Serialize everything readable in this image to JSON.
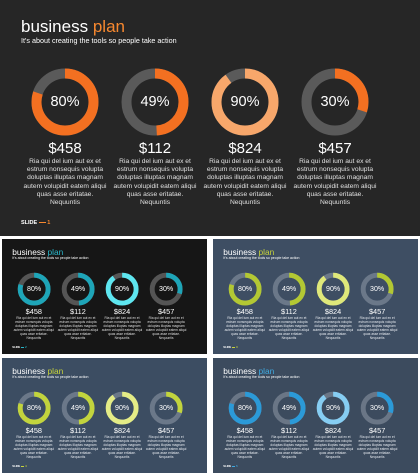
{
  "slides": [
    {
      "title_main": "business",
      "title_accent": "plan",
      "subtitle": "It's about creating the tools so people take action",
      "footer_label": "SLIDE",
      "footer_number": "1",
      "colors": {
        "background": "#262626",
        "title": "#ffffff",
        "accent": "#f7882f",
        "ring_track": "#5a5a5a",
        "text": "#e0e0e0"
      },
      "items": [
        {
          "percent_label": "80%",
          "percent": 80,
          "ring_color": "#f37021",
          "value": "$458",
          "description": "Ria qui del ium aut ex et estrum nonsequis volupta doluptas illuptas magnam autem volupidit eatem aliqui quas asse eritatae. Nequuntis"
        },
        {
          "percent_label": "49%",
          "percent": 49,
          "ring_color": "#f37021",
          "value": "$112",
          "description": "Ria qui del ium aut ex et estrum nonsequis volupta doluptas illuptas magnam autem volupidit eatem aliqui quas asse eritatae. Nequuntis"
        },
        {
          "percent_label": "90%",
          "percent": 90,
          "ring_color": "#f7a76b",
          "value": "$824",
          "description": "Ria qui del ium aut ex et estrum nonsequis volupta doluptas illuptas magnam autem volupidit eatem aliqui quas asse eritatae. Nequuntis"
        },
        {
          "percent_label": "30%",
          "percent": 30,
          "ring_color": "#f37021",
          "value": "$457",
          "description": "Ria qui del ium aut ex et estrum nonsequis volupta doluptas illuptas magnam autem volupidit eatem aliqui quas asse eritatae. Nequuntis"
        }
      ]
    },
    {
      "title_main": "business",
      "title_accent": "plan",
      "subtitle": "It's about creating the tools so people take action",
      "footer_label": "SLIDE",
      "footer_number": "2",
      "colors": {
        "background": "#161616",
        "title": "#ffffff",
        "accent": "#29b6c8",
        "ring_track": "#555555",
        "text": "#dddddd"
      },
      "items": [
        {
          "percent_label": "80%",
          "percent": 80,
          "ring_color": "#1ea5b8",
          "value": "$458",
          "description": "Ria qui del ium aut ex et estrum nonsequis volupta doluptas illuptas magnam autem volupidit eatem aliqui quas asse eritatae. Nequuntis"
        },
        {
          "percent_label": "49%",
          "percent": 49,
          "ring_color": "#1ea5b8",
          "value": "$112",
          "description": "Ria qui del ium aut ex et estrum nonsequis volupta doluptas illuptas magnam autem volupidit eatem aliqui quas asse eritatae. Nequuntis"
        },
        {
          "percent_label": "90%",
          "percent": 90,
          "ring_color": "#5ee6f0",
          "value": "$824",
          "description": "Ria qui del ium aut ex et estrum nonsequis volupta doluptas illuptas magnam autem volupidit eatem aliqui quas asse eritatae. Nequuntis"
        },
        {
          "percent_label": "30%",
          "percent": 30,
          "ring_color": "#1ea5b8",
          "value": "$457",
          "description": "Ria qui del ium aut ex et estrum nonsequis volupta doluptas illuptas magnam autem volupidit eatem aliqui quas asse eritatae. Nequuntis"
        }
      ]
    },
    {
      "title_main": "business",
      "title_accent": "plan",
      "subtitle": "It's about creating the tools so people take action",
      "footer_label": "SLIDE",
      "footer_number": "3",
      "colors": {
        "background": "#3e4e63",
        "title": "#ffffff",
        "accent": "#c8d43a",
        "ring_track": "#6b7889",
        "text": "#e4e8ee"
      },
      "items": [
        {
          "percent_label": "80%",
          "percent": 80,
          "ring_color": "#b3c833",
          "value": "$458",
          "description": "Ria qui del ium aut ex et estrum nonsequis volupta doluptas illuptas magnam autem volupidit eatem aliqui quas asse eritatae. Nequuntis"
        },
        {
          "percent_label": "49%",
          "percent": 49,
          "ring_color": "#b3c833",
          "value": "$112",
          "description": "Ria qui del ium aut ex et estrum nonsequis volupta doluptas illuptas magnam autem volupidit eatem aliqui quas asse eritatae. Nequuntis"
        },
        {
          "percent_label": "90%",
          "percent": 90,
          "ring_color": "#dfe87a",
          "value": "$824",
          "description": "Ria qui del ium aut ex et estrum nonsequis volupta doluptas illuptas magnam autem volupidit eatem aliqui quas asse eritatae. Nequuntis"
        },
        {
          "percent_label": "30%",
          "percent": 30,
          "ring_color": "#b3c833",
          "value": "$457",
          "description": "Ria qui del ium aut ex et estrum nonsequis volupta doluptas illuptas magnam autem volupidit eatem aliqui quas asse eritatae. Nequuntis"
        }
      ]
    },
    {
      "title_main": "business",
      "title_accent": "plan",
      "subtitle": "It's about creating the tools so people take action",
      "footer_label": "SLIDE",
      "footer_number": "4",
      "colors": {
        "background": "#3c4d62",
        "title": "#ffffff",
        "accent": "#c8d43a",
        "ring_track": "#6b7889",
        "text": "#e4e8ee"
      },
      "items": [
        {
          "percent_label": "80%",
          "percent": 80,
          "ring_color": "#c2d43d",
          "value": "$458",
          "description": "Ria qui del ium aut ex et estrum nonsequis volupta doluptas illuptas magnam autem volupidit eatem aliqui quas asse eritatae. Nequuntis"
        },
        {
          "percent_label": "49%",
          "percent": 49,
          "ring_color": "#c2d43d",
          "value": "$112",
          "description": "Ria qui del ium aut ex et estrum nonsequis volupta doluptas illuptas magnam autem volupidit eatem aliqui quas asse eritatae. Nequuntis"
        },
        {
          "percent_label": "90%",
          "percent": 90,
          "ring_color": "#e4ec86",
          "value": "$824",
          "description": "Ria qui del ium aut ex et estrum nonsequis volupta doluptas illuptas magnam autem volupidit eatem aliqui quas asse eritatae. Nequuntis"
        },
        {
          "percent_label": "30%",
          "percent": 30,
          "ring_color": "#c2d43d",
          "value": "$457",
          "description": "Ria qui del ium aut ex et estrum nonsequis volupta doluptas illuptas magnam autem volupidit eatem aliqui quas asse eritatae. Nequuntis"
        }
      ]
    },
    {
      "title_main": "business",
      "title_accent": "plan",
      "subtitle": "It's about creating the tools so people take action",
      "footer_label": "SLIDE",
      "footer_number": "5",
      "colors": {
        "background": "#3c4b5e",
        "title": "#ffffff",
        "accent": "#3fa9e0",
        "ring_track": "#6a7686",
        "text": "#e4e8ee"
      },
      "items": [
        {
          "percent_label": "80%",
          "percent": 80,
          "ring_color": "#2b9ad8",
          "value": "$458",
          "description": "Ria qui del ium aut ex et estrum nonsequis volupta doluptas illuptas magnam autem volupidit eatem aliqui quas asse eritatae. Nequuntis"
        },
        {
          "percent_label": "49%",
          "percent": 49,
          "ring_color": "#2b9ad8",
          "value": "$112",
          "description": "Ria qui del ium aut ex et estrum nonsequis volupta doluptas illuptas magnam autem volupidit eatem aliqui quas asse eritatae. Nequuntis"
        },
        {
          "percent_label": "90%",
          "percent": 90,
          "ring_color": "#86cdf2",
          "value": "$824",
          "description": "Ria qui del ium aut ex et estrum nonsequis volupta doluptas illuptas magnam autem volupidit eatem aliqui quas asse eritatae. Nequuntis"
        },
        {
          "percent_label": "30%",
          "percent": 30,
          "ring_color": "#2b9ad8",
          "value": "$457",
          "description": "Ria qui del ium aut ex et estrum nonsequis volupta doluptas illuptas magnam autem volupidit eatem aliqui quas asse eritatae. Nequuntis"
        }
      ]
    }
  ]
}
